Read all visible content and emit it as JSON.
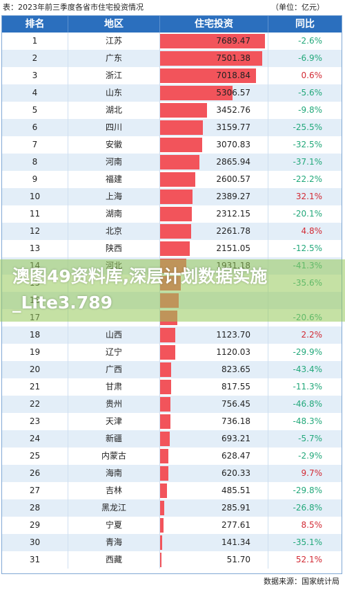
{
  "caption": {
    "title": "表：2023年前三季度各省市住宅投资情况",
    "unit": "（单位：亿元）"
  },
  "header": {
    "rank": "排名",
    "region": "地区",
    "investment": "住宅投资",
    "yoy": "同比"
  },
  "source": "数据来源：国家统计局",
  "watermark": "澳图49资料库,深层计划数据实施_Lite3.789",
  "colors": {
    "header": "#2b6fbe",
    "bar": "#f2545b",
    "alt_row": "#e3eef8",
    "negative": "#22a87a",
    "positive": "#d22a34"
  },
  "chart_data": {
    "type": "bar",
    "title": "表：2023年前三季度各省市住宅投资情况",
    "unit": "（单位：亿元）",
    "xlim": [
      0,
      7689.47
    ],
    "rows": [
      {
        "rank": "1",
        "region": "江苏",
        "value": "7689.47",
        "yoy": "-2.6%"
      },
      {
        "rank": "2",
        "region": "广东",
        "value": "7501.38",
        "yoy": "-6.9%"
      },
      {
        "rank": "3",
        "region": "浙江",
        "value": "7018.84",
        "yoy": "0.6%"
      },
      {
        "rank": "4",
        "region": "山东",
        "value": "5306.57",
        "yoy": "-5.6%"
      },
      {
        "rank": "5",
        "region": "湖北",
        "value": "3452.76",
        "yoy": "-9.8%"
      },
      {
        "rank": "6",
        "region": "四川",
        "value": "3159.77",
        "yoy": "-25.5%"
      },
      {
        "rank": "7",
        "region": "安徽",
        "value": "3070.83",
        "yoy": "-32.5%"
      },
      {
        "rank": "8",
        "region": "河南",
        "value": "2865.94",
        "yoy": "-37.1%"
      },
      {
        "rank": "9",
        "region": "福建",
        "value": "2600.57",
        "yoy": "-22.2%"
      },
      {
        "rank": "10",
        "region": "上海",
        "value": "2389.27",
        "yoy": "32.1%"
      },
      {
        "rank": "11",
        "region": "湖南",
        "value": "2312.15",
        "yoy": "-20.1%"
      },
      {
        "rank": "12",
        "region": "北京",
        "value": "2261.78",
        "yoy": "4.8%"
      },
      {
        "rank": "13",
        "region": "陕西",
        "value": "2151.05",
        "yoy": "-12.5%"
      },
      {
        "rank": "14",
        "region": "河北",
        "value": "1931.18",
        "yoy": "-41.3%"
      },
      {
        "rank": "15",
        "region": "",
        "value": "",
        "yoy": "-35.6%"
      },
      {
        "rank": "16",
        "region": "",
        "value": "",
        "yoy": ""
      },
      {
        "rank": "17",
        "region": "",
        "value": "",
        "yoy": "-20.6%"
      },
      {
        "rank": "18",
        "region": "山西",
        "value": "1123.70",
        "yoy": "2.2%"
      },
      {
        "rank": "19",
        "region": "辽宁",
        "value": "1120.03",
        "yoy": "-29.9%"
      },
      {
        "rank": "20",
        "region": "广西",
        "value": "823.65",
        "yoy": "-43.4%"
      },
      {
        "rank": "21",
        "region": "甘肃",
        "value": "817.55",
        "yoy": "-11.3%"
      },
      {
        "rank": "22",
        "region": "贵州",
        "value": "756.45",
        "yoy": "-46.8%"
      },
      {
        "rank": "23",
        "region": "天津",
        "value": "736.18",
        "yoy": "-48.3%"
      },
      {
        "rank": "24",
        "region": "新疆",
        "value": "693.21",
        "yoy": "-5.7%"
      },
      {
        "rank": "25",
        "region": "内蒙古",
        "value": "628.47",
        "yoy": "-2.9%"
      },
      {
        "rank": "26",
        "region": "海南",
        "value": "620.33",
        "yoy": "9.7%"
      },
      {
        "rank": "27",
        "region": "吉林",
        "value": "485.51",
        "yoy": "-29.8%"
      },
      {
        "rank": "28",
        "region": "黑龙江",
        "value": "285.91",
        "yoy": "-26.8%"
      },
      {
        "rank": "29",
        "region": "宁夏",
        "value": "277.61",
        "yoy": "8.5%"
      },
      {
        "rank": "30",
        "region": "青海",
        "value": "141.34",
        "yoy": "-35.1%"
      },
      {
        "rank": "31",
        "region": "西藏",
        "value": "51.70",
        "yoy": "52.1%"
      }
    ],
    "bar_values_hidden_rows": {
      "15": 1500,
      "16": 1350,
      "17": 1250
    }
  }
}
